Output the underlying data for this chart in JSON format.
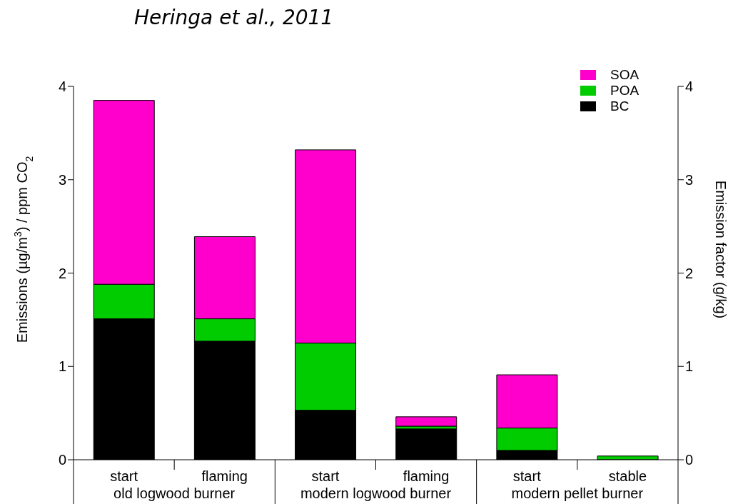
{
  "chart_data": {
    "type": "bar",
    "title": "Heringa et al., 2011",
    "ylabel": "Emissions (µg/m$^{3}$) / ppm CO$_{2}$",
    "y2label": "Emission factor (g/kg)",
    "categories": [
      "start",
      "flaming",
      "start",
      "flaming",
      "start",
      "stable"
    ],
    "annotations": [
      "old logwood burner",
      "modern logwood burner",
      "modern pellet burner"
    ],
    "stacked": true,
    "series": [
      {
        "name": "BC",
        "color": "#000000",
        "values": [
          1.51,
          1.27,
          0.53,
          0.33,
          0.1,
          null
        ]
      },
      {
        "name": "POA",
        "color": "#00cc00",
        "values": [
          0.37,
          0.24,
          0.72,
          0.03,
          0.24,
          0.04
        ]
      },
      {
        "name": "SOA",
        "color": "#ff00cc",
        "values": [
          1.97,
          0.88,
          2.07,
          0.1,
          0.57,
          0
        ]
      }
    ],
    "ylim": [
      0,
      4
    ],
    "yticks": [
      0,
      1,
      2,
      3,
      4
    ],
    "y2lim": [
      0,
      4
    ],
    "y2ticks": [
      0,
      1,
      2,
      3,
      4
    ],
    "grid": false,
    "legend": "top right"
  }
}
